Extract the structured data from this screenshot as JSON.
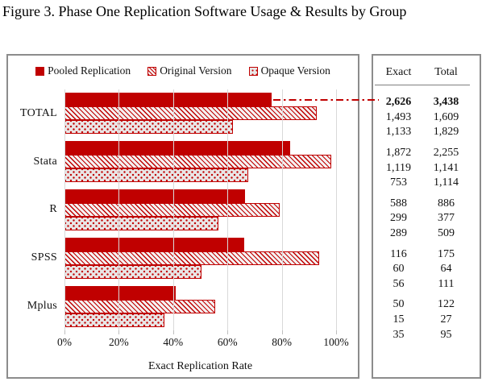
{
  "title": "Figure 3. Phase One Replication Software Usage & Results by Group",
  "colors": {
    "accent_red": "#C00000",
    "panel_border": "#8C8C8C",
    "gridline": "#D9D9D9",
    "pattern_background": "#E9E6E6"
  },
  "legend": [
    {
      "label": "Pooled Replication",
      "style": "solid"
    },
    {
      "label": "Original Version",
      "style": "hatch"
    },
    {
      "label": "Opaque Version",
      "style": "dots"
    }
  ],
  "chart_data": {
    "type": "bar",
    "orientation": "horizontal",
    "title": "",
    "xlabel": "Exact Replication Rate",
    "ylabel": "",
    "xlim": [
      0,
      100
    ],
    "x_ticks": [
      "0%",
      "20%",
      "40%",
      "60%",
      "80%",
      "100%"
    ],
    "grid": true,
    "legend_position": "top",
    "categories": [
      "TOTAL",
      "Stata",
      "R",
      "SPSS",
      "Mplus"
    ],
    "series": [
      {
        "name": "Pooled Replication",
        "pattern": "solid",
        "exact": [
          2626,
          1872,
          588,
          116,
          50
        ],
        "total": [
          3438,
          2255,
          886,
          175,
          122
        ],
        "rate_pct": [
          76.4,
          83.0,
          66.4,
          66.3,
          41.0
        ]
      },
      {
        "name": "Original Version",
        "pattern": "hatch",
        "exact": [
          1493,
          1119,
          299,
          60,
          15
        ],
        "total": [
          1609,
          1141,
          377,
          64,
          27
        ],
        "rate_pct": [
          92.8,
          98.1,
          79.3,
          93.8,
          55.6
        ]
      },
      {
        "name": "Opaque Version",
        "pattern": "dots",
        "exact": [
          1133,
          753,
          289,
          56,
          35
        ],
        "total": [
          1829,
          1114,
          509,
          111,
          95
        ],
        "rate_pct": [
          61.9,
          67.6,
          56.8,
          50.5,
          36.8
        ]
      }
    ],
    "annotation": {
      "type": "dash-dot-line",
      "color": "#C00000",
      "description": "line from end of TOTAL Pooled Replication bar to table value 2,626"
    }
  },
  "table": {
    "headers": [
      "Exact",
      "Total"
    ],
    "groups": [
      {
        "category": "TOTAL",
        "rows": [
          [
            "2,626",
            "3,438"
          ],
          [
            "1,493",
            "1,609"
          ],
          [
            "1,133",
            "1,829"
          ]
        ],
        "bold_first_row": true
      },
      {
        "category": "Stata",
        "rows": [
          [
            "1,872",
            "2,255"
          ],
          [
            "1,119",
            "1,141"
          ],
          [
            "753",
            "1,114"
          ]
        ],
        "bold_first_row": false
      },
      {
        "category": "R",
        "rows": [
          [
            "588",
            "886"
          ],
          [
            "299",
            "377"
          ],
          [
            "289",
            "509"
          ]
        ],
        "bold_first_row": false
      },
      {
        "category": "SPSS",
        "rows": [
          [
            "116",
            "175"
          ],
          [
            "60",
            "64"
          ],
          [
            "56",
            "111"
          ]
        ],
        "bold_first_row": false
      },
      {
        "category": "Mplus",
        "rows": [
          [
            "50",
            "122"
          ],
          [
            "15",
            "27"
          ],
          [
            "35",
            "95"
          ]
        ],
        "bold_first_row": false
      }
    ]
  }
}
